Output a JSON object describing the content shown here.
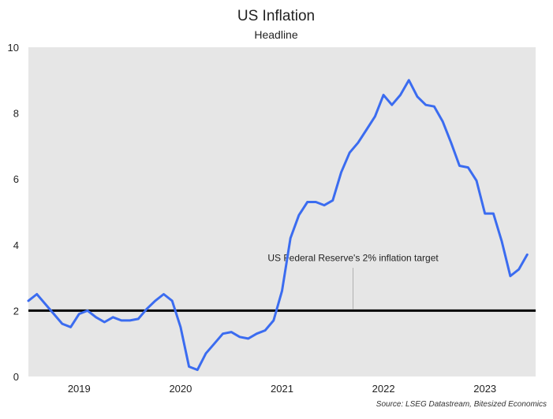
{
  "chart_data": {
    "type": "line",
    "title": "US Inflation",
    "subtitle": "Headline",
    "source": "Source: LSEG Datastream, Bitesized Economics",
    "xlabel": "",
    "ylabel": "",
    "ylim": [
      0,
      10
    ],
    "yticks": [
      "0",
      "2",
      "4",
      "6",
      "8",
      "10"
    ],
    "xlim": [
      "2018-09",
      "2023-09"
    ],
    "xticks": [
      {
        "label": "2019",
        "date": "2019-03"
      },
      {
        "label": "2020",
        "date": "2020-03"
      },
      {
        "label": "2021",
        "date": "2021-03"
      },
      {
        "label": "2022",
        "date": "2022-03"
      },
      {
        "label": "2023",
        "date": "2023-03"
      }
    ],
    "grid": false,
    "series": [
      {
        "color": "#3b6cf0",
        "x": [
          "2018-09",
          "2018-10",
          "2018-11",
          "2018-12",
          "2019-01",
          "2019-02",
          "2019-03",
          "2019-04",
          "2019-05",
          "2019-06",
          "2019-07",
          "2019-08",
          "2019-09",
          "2019-10",
          "2019-11",
          "2019-12",
          "2020-01",
          "2020-02",
          "2020-03",
          "2020-04",
          "2020-05",
          "2020-06",
          "2020-07",
          "2020-08",
          "2020-09",
          "2020-10",
          "2020-11",
          "2020-12",
          "2021-01",
          "2021-02",
          "2021-03",
          "2021-04",
          "2021-05",
          "2021-06",
          "2021-07",
          "2021-08",
          "2021-09",
          "2021-10",
          "2021-11",
          "2021-12",
          "2022-01",
          "2022-02",
          "2022-03",
          "2022-04",
          "2022-05",
          "2022-06",
          "2022-07",
          "2022-08",
          "2022-09",
          "2022-10",
          "2022-11",
          "2022-12",
          "2023-01",
          "2023-02",
          "2023-03",
          "2023-04",
          "2023-05",
          "2023-06",
          "2023-07",
          "2023-08"
        ],
        "values": [
          2.3,
          2.5,
          2.2,
          1.9,
          1.6,
          1.5,
          1.9,
          2.0,
          1.8,
          1.65,
          1.8,
          1.7,
          1.7,
          1.75,
          2.05,
          2.3,
          2.5,
          2.3,
          1.5,
          0.3,
          0.2,
          0.7,
          1.0,
          1.3,
          1.35,
          1.2,
          1.15,
          1.3,
          1.4,
          1.7,
          2.6,
          4.2,
          4.9,
          5.3,
          5.3,
          5.2,
          5.35,
          6.2,
          6.8,
          7.1,
          7.5,
          7.9,
          8.55,
          8.25,
          8.55,
          9.0,
          8.5,
          8.25,
          8.2,
          7.75,
          7.1,
          6.4,
          6.35,
          5.95,
          4.95,
          4.95,
          4.1,
          3.05,
          3.25,
          3.7
        ]
      }
    ],
    "reference_lines": [
      {
        "y": 2,
        "label": "US Federal Reserve's 2% inflation target",
        "color": "#000000"
      }
    ]
  }
}
